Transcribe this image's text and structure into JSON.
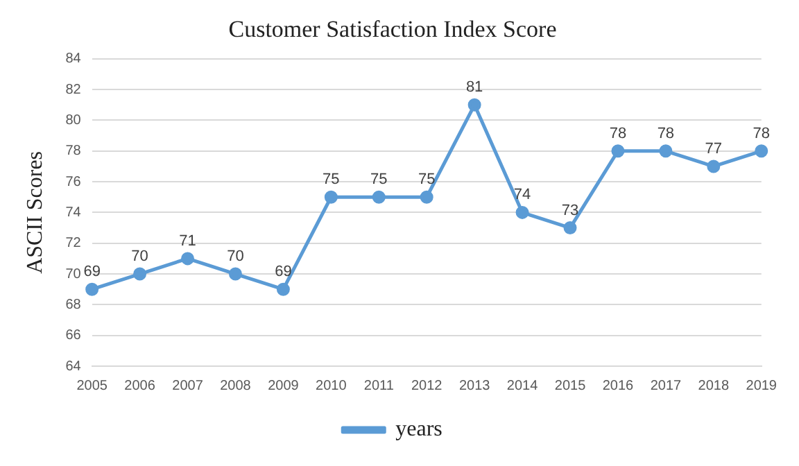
{
  "chart_data": {
    "type": "line",
    "title": "Customer Satisfaction Index Score",
    "ylabel": "ASCII Scores",
    "categories": [
      "2005",
      "2006",
      "2007",
      "2008",
      "2009",
      "2010",
      "2011",
      "2012",
      "2013",
      "2014",
      "2015",
      "2016",
      "2017",
      "2018",
      "2019"
    ],
    "series": [
      {
        "name": "years",
        "color": "#5b9bd5",
        "values": [
          69,
          70,
          71,
          70,
          69,
          75,
          75,
          75,
          81,
          74,
          73,
          78,
          78,
          77,
          78
        ]
      }
    ],
    "ylim": [
      64,
      84
    ],
    "yticks": [
      64,
      66,
      68,
      70,
      72,
      74,
      76,
      78,
      80,
      82,
      84
    ],
    "grid": "y",
    "legend": "bottom",
    "marker": "circle",
    "line_style": "solid",
    "data_labels": true
  }
}
